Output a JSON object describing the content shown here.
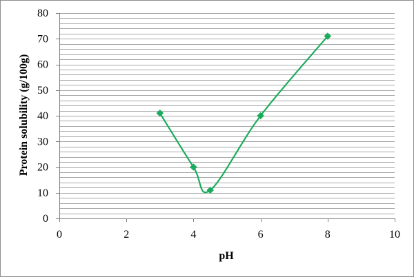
{
  "chart_data": {
    "type": "scatter",
    "title": "",
    "xlabel": "pH",
    "ylabel": "Protein solubility (g/100g)",
    "xlim": [
      0,
      10
    ],
    "ylim": [
      0,
      80
    ],
    "x_ticks": [
      0,
      2,
      4,
      6,
      8,
      10
    ],
    "y_ticks": [
      0,
      10,
      20,
      30,
      40,
      50,
      60,
      70,
      80
    ],
    "minor_gridline_step": 2,
    "grid": true,
    "legend": "none",
    "smoothed_line": true,
    "series": [
      {
        "color": "#1aab5c",
        "marker": "diamond",
        "x": [
          3,
          4,
          4.5,
          6,
          8
        ],
        "y": [
          41,
          20,
          11,
          40,
          71
        ]
      }
    ]
  }
}
